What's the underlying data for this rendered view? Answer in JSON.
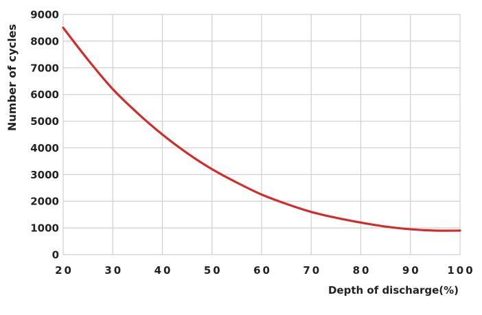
{
  "chart_data": {
    "type": "line",
    "title": "",
    "xlabel": "Depth of discharge(%)",
    "ylabel": "Number of cycles",
    "xlim": [
      20,
      100
    ],
    "ylim": [
      0,
      9000
    ],
    "x_ticks": [
      "20",
      "30",
      "40",
      "50",
      "60",
      "70",
      "80",
      "90",
      "100"
    ],
    "y_ticks": [
      "0",
      "1000",
      "2000",
      "3000",
      "4000",
      "5000",
      "6000",
      "7000",
      "8000",
      "9000"
    ],
    "grid": true,
    "legend": "none",
    "series": [
      {
        "color": "#d42a2a",
        "x": [
          20,
          25,
          30,
          35,
          40,
          45,
          50,
          55,
          60,
          65,
          70,
          75,
          80,
          85,
          90,
          95,
          100
        ],
        "y": [
          8500,
          7300,
          6200,
          5300,
          4500,
          3800,
          3200,
          2700,
          2250,
          1900,
          1600,
          1380,
          1200,
          1050,
          950,
          900,
          900
        ]
      }
    ]
  }
}
